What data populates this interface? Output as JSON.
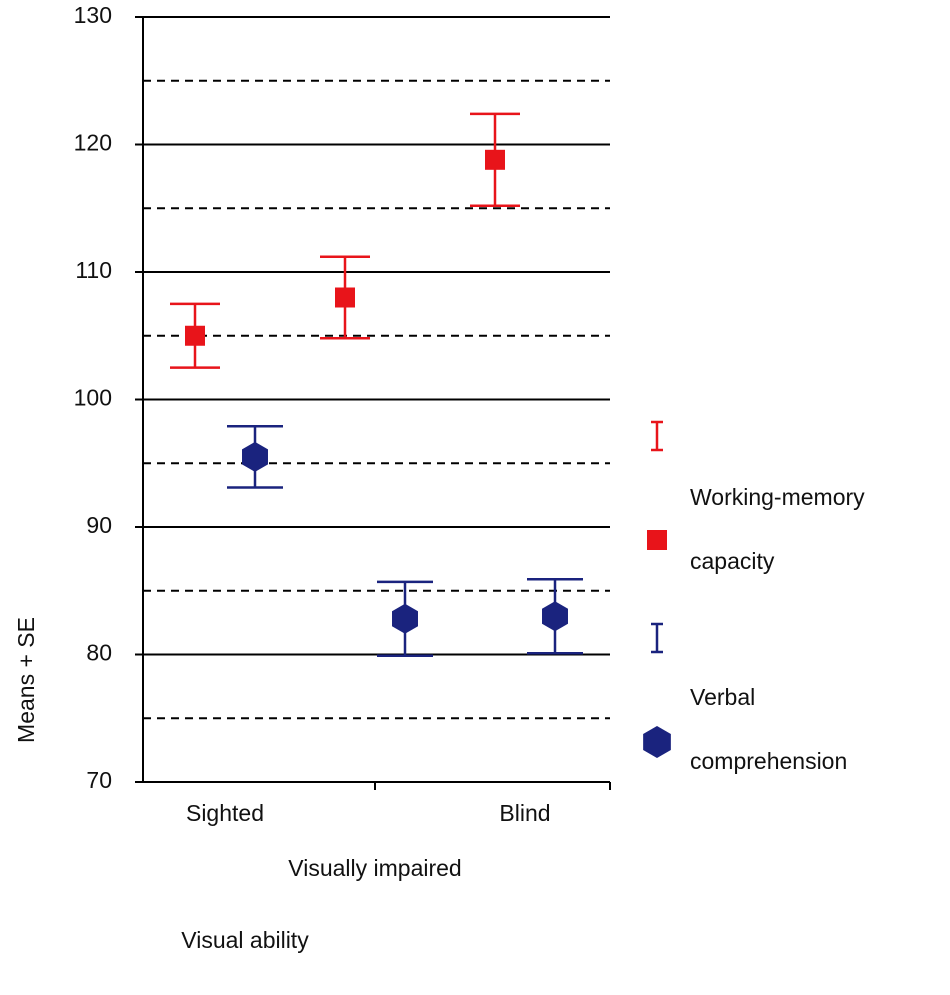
{
  "chart_data": {
    "type": "errorbar",
    "categories": [
      "Sighted",
      "Visually impaired",
      "Blind"
    ],
    "x_label": "Visual ability",
    "y_label": "Means + SE",
    "ylim": [
      70,
      130
    ],
    "yticks": [
      70,
      80,
      90,
      100,
      110,
      120,
      130
    ],
    "minor_yticks": [
      75,
      85,
      95,
      105,
      115,
      125
    ],
    "grid": true,
    "legend": "right",
    "series": [
      {
        "name": "Working-memory capacity",
        "color": "#e8141a",
        "marker": "square",
        "values": [
          105,
          108,
          118.8
        ],
        "errors": [
          2.5,
          3.2,
          3.6
        ]
      },
      {
        "name": "Verbal comprehension",
        "color": "#1a237e",
        "marker": "hexagon",
        "values": [
          95.5,
          82.8,
          83
        ],
        "errors": [
          2.4,
          2.9,
          2.9
        ]
      }
    ]
  }
}
